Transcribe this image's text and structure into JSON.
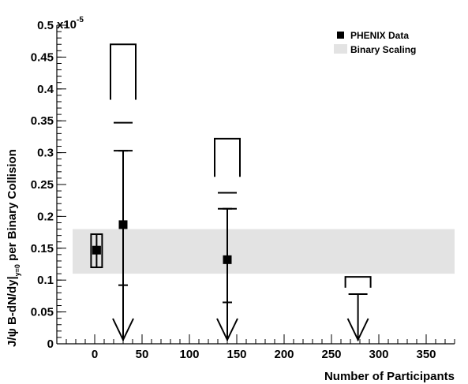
{
  "chart_data": {
    "type": "scatter",
    "title": "",
    "xlabel": "Number of Participants",
    "ylabel": "J/ψ  B-dN/dy|y=0 per Binary Collision",
    "ylabel_parts": {
      "prefix": "J/ψ  B-dN/dy|",
      "subscript": "y=0",
      "suffix": " per Binary Collision"
    },
    "y_multiplier": "x10",
    "y_multiplier_exponent": "-5",
    "xlim": [
      -40,
      380
    ],
    "ylim": [
      0,
      0.5
    ],
    "x_ticks": [
      0,
      50,
      100,
      150,
      200,
      250,
      300,
      350
    ],
    "x_tick_labels": [
      "0",
      "50",
      "100",
      "150",
      "200",
      "250",
      "300",
      "350"
    ],
    "y_ticks": [
      0,
      0.05,
      0.1,
      0.15,
      0.2,
      0.25,
      0.3,
      0.35,
      0.4,
      0.45,
      0.5
    ],
    "y_tick_labels": [
      "0",
      "0.05",
      "0.1",
      "0.15",
      "0.2",
      "0.25",
      "0.3",
      "0.35",
      "0.4",
      "0.45",
      "0.5"
    ],
    "grid": false,
    "legend_position": "top-right",
    "legend": [
      {
        "label": "PHENIX Data",
        "symbol": "filled-square",
        "color": "#000000"
      },
      {
        "label": "Binary Scaling",
        "symbol": "band",
        "color": "#e3e3e3"
      }
    ],
    "binary_scaling_band": {
      "x_range": [
        -40,
        380
      ],
      "y_low": 0.11,
      "y_high": 0.18,
      "color": "#e3e3e3"
    },
    "data_points": [
      {
        "x": 2,
        "y": 0.147,
        "stat_err_low": 0.12,
        "stat_err_high": 0.172,
        "sys_low": 0.12,
        "sys_high": 0.172
      },
      {
        "x": 30,
        "y": 0.187,
        "stat_err_low": 0.092,
        "stat_err_high": 0.303,
        "outer_high": 0.347,
        "sys_box_low": 0.383,
        "sys_box_high": 0.47
      },
      {
        "x": 140,
        "y": 0.132,
        "stat_err_low": 0.065,
        "stat_err_high": 0.212,
        "outer_high": 0.237,
        "sys_box_low": 0.262,
        "sys_box_high": 0.322
      }
    ],
    "upper_limits": [
      {
        "x": 30,
        "y_high": 0.303,
        "sys_box_low": 0.383,
        "sys_box_high": 0.47
      },
      {
        "x": 140,
        "y_high": 0.212,
        "sys_box_low": 0.262,
        "sys_box_high": 0.322
      },
      {
        "x": 278,
        "y_high": 0.078,
        "sys_box_low": 0.088,
        "sys_box_high": 0.105
      }
    ]
  }
}
